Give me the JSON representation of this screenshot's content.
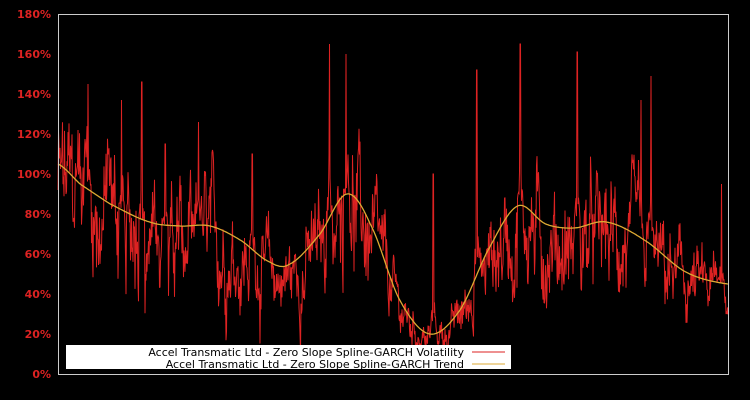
{
  "chart_data": {
    "type": "line",
    "title": "",
    "xlabel": "",
    "ylabel": "",
    "ylim": [
      0,
      180
    ],
    "yticks": [
      0,
      20,
      40,
      60,
      80,
      100,
      120,
      140,
      160,
      180
    ],
    "ytick_labels": [
      "0%",
      "20%",
      "40%",
      "60%",
      "80%",
      "100%",
      "120%",
      "140%",
      "160%",
      "180%"
    ],
    "grid": false,
    "legend_position": "lower left",
    "colors": {
      "background": "#000000",
      "axis": "#cccccc",
      "tick_text": "#dd2222",
      "volatility": "#dd2222",
      "trend": "#ddaa33",
      "legend_bg": "#ffffff"
    },
    "series": [
      {
        "name": "Accel Transmatic Ltd - Zero Slope Spline-GARCH Volatility",
        "color": "#dd2222",
        "description": "noisy daily volatility with spikes around trend",
        "spikes": [
          [
            0.03,
            122
          ],
          [
            0.045,
            145
          ],
          [
            0.075,
            110
          ],
          [
            0.095,
            137
          ],
          [
            0.125,
            146
          ],
          [
            0.16,
            115
          ],
          [
            0.21,
            126
          ],
          [
            0.29,
            110
          ],
          [
            0.405,
            165
          ],
          [
            0.43,
            160
          ],
          [
            0.56,
            100
          ],
          [
            0.625,
            152
          ],
          [
            0.69,
            165
          ],
          [
            0.775,
            161
          ],
          [
            0.87,
            137
          ],
          [
            0.885,
            149
          ],
          [
            0.99,
            95
          ]
        ]
      },
      {
        "name": "Accel Transmatic Ltd - Zero Slope Spline-GARCH Trend",
        "color": "#ddaa33",
        "x": [
          0,
          0.033,
          0.078,
          0.137,
          0.182,
          0.227,
          0.272,
          0.316,
          0.346,
          0.391,
          0.431,
          0.466,
          0.51,
          0.555,
          0.6,
          0.642,
          0.686,
          0.728,
          0.77,
          0.818,
          0.875,
          0.937,
          1.0
        ],
        "values": [
          105,
          95,
          85,
          76,
          74,
          74,
          67,
          56,
          55,
          70,
          90,
          75,
          37,
          20,
          32,
          62,
          84,
          75,
          73,
          76,
          67,
          51,
          45
        ]
      }
    ]
  },
  "legend": {
    "items": [
      {
        "label": "Accel Transmatic Ltd - Zero Slope Spline-GARCH Volatility",
        "color": "#dd2222"
      },
      {
        "label": "Accel Transmatic Ltd - Zero Slope Spline-GARCH Trend",
        "color": "#ddaa33"
      }
    ]
  }
}
